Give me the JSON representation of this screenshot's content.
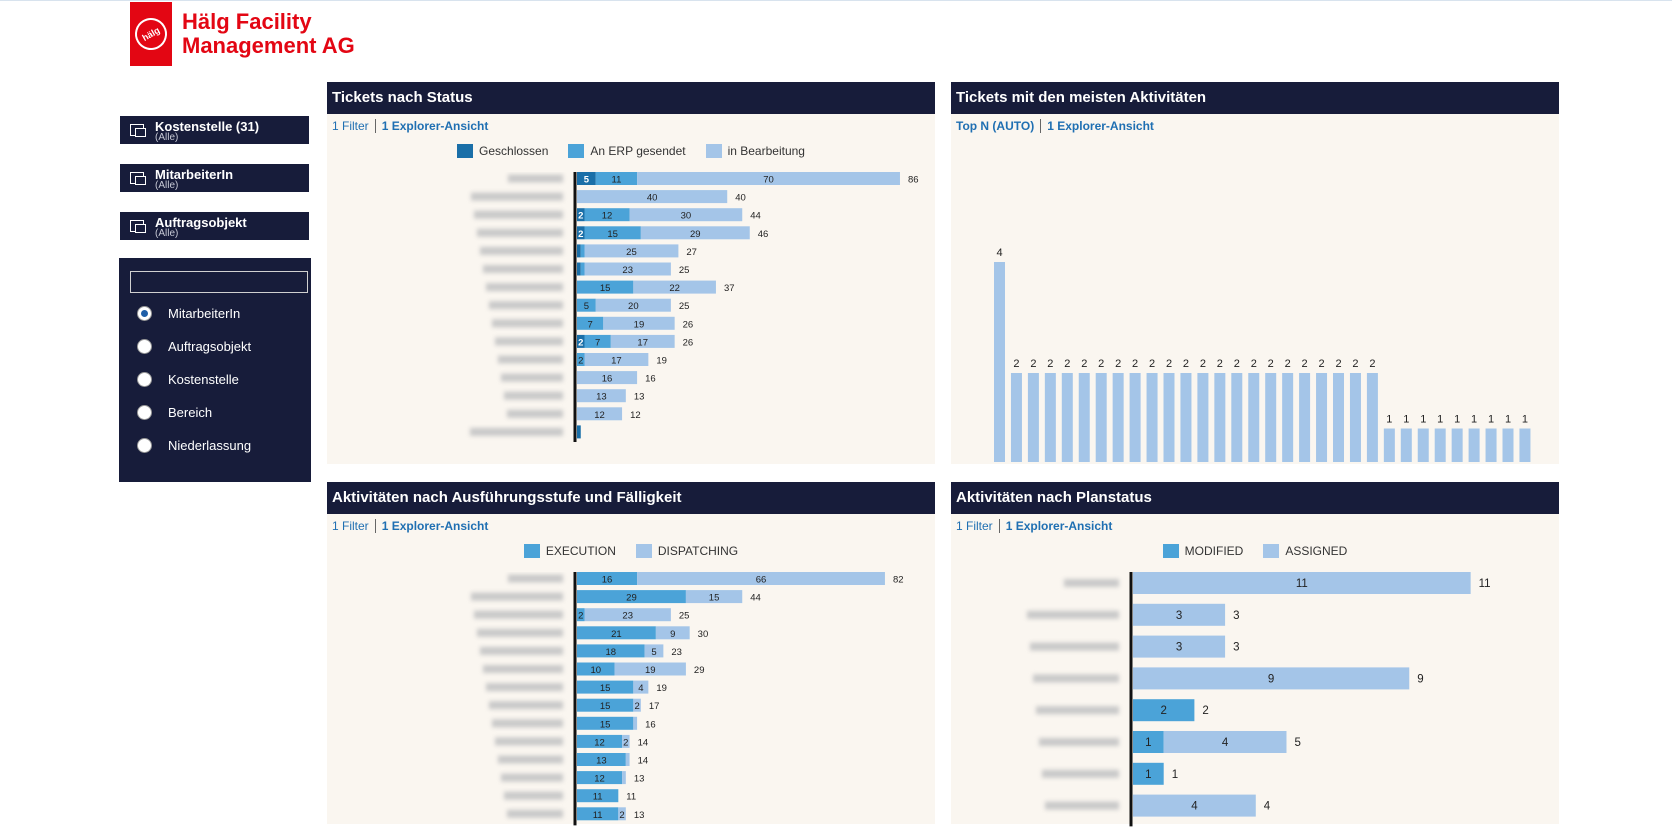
{
  "app": {
    "logo_mark": "hälg",
    "company_line1": "Hälg Facility",
    "company_line2": "Management AG"
  },
  "filters": [
    {
      "name": "Kostenstelle (31)",
      "value": "(Alle)"
    },
    {
      "name": "MitarbeiterIn",
      "value": "(Alle)"
    },
    {
      "name": "Auftragsobjekt",
      "value": "(Alle)"
    }
  ],
  "selector": {
    "search_value": "",
    "options": [
      "MitarbeiterIn",
      "Auftragsobjekt",
      "Kostenstelle",
      "Bereich",
      "Niederlassung"
    ],
    "selected": "MitarbeiterIn"
  },
  "colors": {
    "dark": "#1a6fa8",
    "mid": "#4ba3d8",
    "light": "#a4c5e8",
    "header": "#171c3a",
    "card_bg": "#faf6f0"
  },
  "cards": {
    "status": {
      "title": "Tickets nach Status",
      "filter_link": "1 Filter",
      "explorer_link": "1 Explorer-Ansicht",
      "legend": [
        "Geschlossen",
        "An ERP gesendet",
        "in Bearbeitung"
      ]
    },
    "activities": {
      "title": "Tickets mit den meisten Aktivitäten",
      "filter_link": "Top N (AUTO)",
      "explorer_link": "1 Explorer-Ansicht"
    },
    "execution": {
      "title": "Aktivitäten nach Ausführungsstufe und Fälligkeit",
      "filter_link": "1 Filter",
      "explorer_link": "1 Explorer-Ansicht",
      "legend": [
        "EXECUTION",
        "DISPATCHING"
      ]
    },
    "plan": {
      "title": "Aktivitäten nach Planstatus",
      "filter_link": "1 Filter",
      "explorer_link": "1 Explorer-Ansicht",
      "legend": [
        "MODIFIED",
        "ASSIGNED"
      ]
    }
  },
  "chart_data": [
    {
      "id": "status",
      "type": "bar",
      "orientation": "horizontal",
      "stacked": true,
      "categories_note": "employee names blurred",
      "series": [
        {
          "name": "Geschlossen",
          "values": [
            5,
            0,
            2,
            2,
            1,
            1,
            0,
            0,
            0,
            2,
            0,
            0,
            0,
            0,
            1
          ]
        },
        {
          "name": "An ERP gesendet",
          "values": [
            11,
            0,
            12,
            15,
            1,
            1,
            15,
            5,
            7,
            7,
            2,
            0,
            0,
            0,
            0
          ]
        },
        {
          "name": "in Bearbeitung",
          "values": [
            70,
            40,
            30,
            29,
            25,
            23,
            22,
            20,
            19,
            17,
            17,
            16,
            13,
            12,
            0
          ]
        }
      ],
      "totals": [
        86,
        40,
        44,
        46,
        27,
        25,
        37,
        25,
        26,
        26,
        19,
        16,
        13,
        12,
        null
      ],
      "segment_labels": [
        [
          "5",
          "11",
          "70"
        ],
        [
          "",
          "",
          "40"
        ],
        [
          "2",
          "12",
          "30"
        ],
        [
          "2",
          "15",
          "29"
        ],
        [
          "",
          "",
          "25"
        ],
        [
          "",
          "",
          "23"
        ],
        [
          "",
          "15",
          "22"
        ],
        [
          "",
          "5",
          "20"
        ],
        [
          "",
          "7",
          "19"
        ],
        [
          "2",
          "7",
          "17"
        ],
        [
          "",
          "2",
          "17"
        ],
        [
          "",
          "",
          "16"
        ],
        [
          "",
          "",
          "13"
        ],
        [
          "",
          "",
          "12"
        ],
        [
          "",
          "",
          ""
        ]
      ],
      "xlim": [
        0,
        90
      ]
    },
    {
      "id": "activities",
      "type": "bar",
      "orientation": "vertical",
      "categories_note": "ticket labels blurred",
      "values": [
        4,
        2,
        2,
        2,
        2,
        2,
        2,
        2,
        2,
        2,
        2,
        2,
        2,
        2,
        2,
        2,
        2,
        2,
        2,
        2,
        2,
        2,
        2,
        1,
        1,
        1,
        1,
        1,
        1,
        1,
        1,
        1
      ],
      "ylim": [
        0,
        4
      ]
    },
    {
      "id": "execution",
      "type": "bar",
      "orientation": "horizontal",
      "stacked": true,
      "categories_note": "employee names blurred",
      "series": [
        {
          "name": "EXECUTION",
          "values": [
            16,
            29,
            2,
            21,
            18,
            10,
            15,
            15,
            15,
            12,
            13,
            12,
            11,
            11
          ]
        },
        {
          "name": "DISPATCHING",
          "values": [
            66,
            15,
            23,
            9,
            5,
            19,
            4,
            2,
            1,
            2,
            1,
            1,
            0,
            2
          ]
        }
      ],
      "totals": [
        82,
        44,
        25,
        30,
        23,
        29,
        19,
        17,
        16,
        14,
        14,
        13,
        11,
        13
      ],
      "segment_labels": [
        [
          "16",
          "66"
        ],
        [
          "29",
          "15"
        ],
        [
          "2",
          "23"
        ],
        [
          "21",
          "9"
        ],
        [
          "18",
          "5"
        ],
        [
          "10",
          "19"
        ],
        [
          "15",
          "4"
        ],
        [
          "15",
          "2"
        ],
        [
          "15",
          ""
        ],
        [
          "12",
          "2"
        ],
        [
          "13",
          ""
        ],
        [
          "12",
          ""
        ],
        [
          "11",
          ""
        ],
        [
          "11",
          "2"
        ]
      ],
      "xlim": [
        0,
        90
      ]
    },
    {
      "id": "plan",
      "type": "bar",
      "orientation": "horizontal",
      "stacked": true,
      "categories_note": "employee names blurred",
      "series": [
        {
          "name": "MODIFIED",
          "values": [
            0,
            0,
            0,
            0,
            2,
            1,
            1,
            0
          ]
        },
        {
          "name": "ASSIGNED",
          "values": [
            11,
            3,
            3,
            9,
            0,
            4,
            0,
            4
          ]
        }
      ],
      "totals": [
        11,
        3,
        3,
        9,
        2,
        5,
        1,
        4
      ],
      "segment_labels": [
        [
          "",
          "11"
        ],
        [
          "",
          "3"
        ],
        [
          "",
          "3"
        ],
        [
          "",
          "9"
        ],
        [
          "2",
          ""
        ],
        [
          "1",
          "4"
        ],
        [
          "1",
          ""
        ],
        [
          "",
          "4"
        ]
      ],
      "xlim": [
        0,
        11.5
      ]
    }
  ]
}
